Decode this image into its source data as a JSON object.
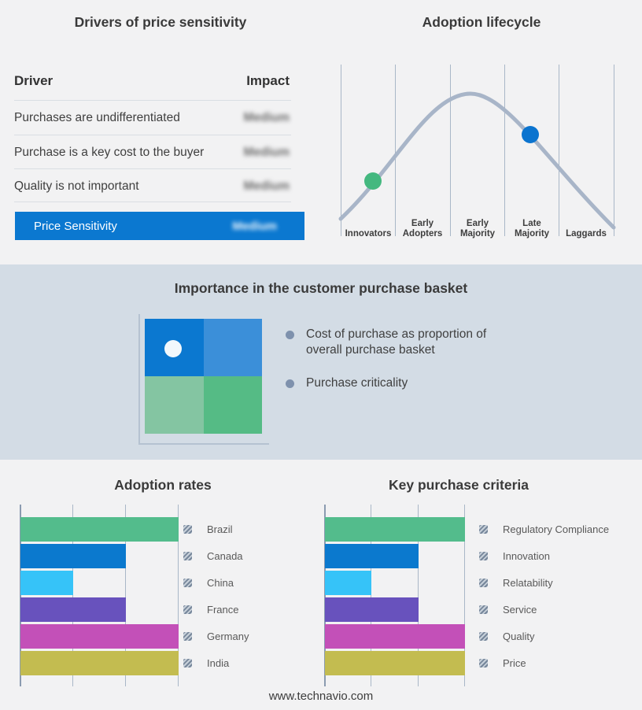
{
  "footer": "www.technavio.com",
  "basket": {
    "title": "Importance in the customer purchase basket",
    "bullets": [
      "Cost of purchase as proportion of overall purchase basket",
      "Purchase criticality"
    ],
    "quadrant_colors": {
      "top_left": "#0b78d0",
      "top_right": "#3b8fd9",
      "bottom_left": "#84c5a2",
      "bottom_right": "#55bb85"
    },
    "marker": {
      "quadrant": "top_left",
      "color": "#f2f8fc"
    }
  },
  "chart_data": [
    {
      "type": "table",
      "title": "Drivers of price sensitivity",
      "columns": [
        "Driver",
        "Impact"
      ],
      "rows": [
        [
          "Purchases are undifferentiated",
          "Medium"
        ],
        [
          "Purchase is a key cost to the buyer",
          "Medium"
        ],
        [
          "Quality is not important",
          "Medium"
        ]
      ],
      "summary_row": [
        "Price Sensitivity",
        "Medium"
      ],
      "summary_color": "#0b78d0",
      "impact_values_blurred": true
    },
    {
      "type": "line",
      "title": "Adoption lifecycle",
      "curve": "bell",
      "categories": [
        "Innovators",
        "Early Adopters",
        "Early Majority",
        "Late Majority",
        "Laggards"
      ],
      "line_color": "#a8b5c8",
      "grid": "vertical",
      "markers": [
        {
          "stage": "Innovators",
          "position": "rising-slope",
          "color": "#44b87f"
        },
        {
          "stage": "Late Majority",
          "position": "falling-slope",
          "color": "#0b74cf"
        }
      ]
    },
    {
      "type": "bar",
      "orientation": "horizontal",
      "title": "Adoption rates",
      "categories": [
        "Brazil",
        "Canada",
        "China",
        "France",
        "Germany",
        "India"
      ],
      "values": [
        3,
        2,
        1,
        2,
        3,
        3
      ],
      "xlim": [
        0,
        3
      ],
      "grid": true,
      "legend_position": "right",
      "legend_swatch": "censored-hatch",
      "bar_colors": [
        "#53bc8c",
        "#0b79ce",
        "#36c3f8",
        "#6852bd",
        "#c350b8",
        "#c3bc50"
      ]
    },
    {
      "type": "bar",
      "orientation": "horizontal",
      "title": "Key purchase criteria",
      "categories": [
        "Regulatory Compliance",
        "Innovation",
        "Relatability",
        "Service",
        "Quality",
        "Price"
      ],
      "values": [
        3,
        2,
        1,
        2,
        3,
        3
      ],
      "xlim": [
        0,
        3
      ],
      "grid": true,
      "legend_position": "right",
      "legend_swatch": "censored-hatch",
      "bar_colors": [
        "#53bc8c",
        "#0b79ce",
        "#36c3f8",
        "#6852bd",
        "#c350b8",
        "#c3bc50"
      ]
    }
  ]
}
